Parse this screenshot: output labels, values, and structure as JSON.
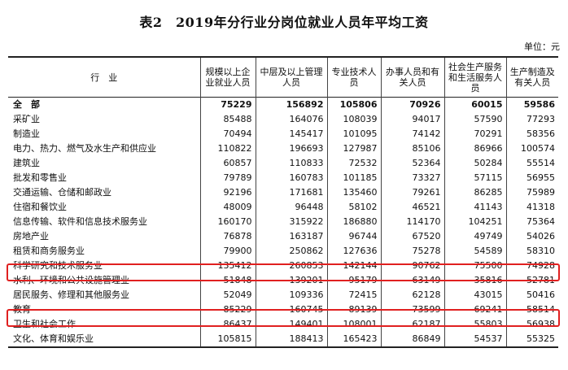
{
  "title": "表2　2019年分行业分岗位就业人员年平均工资",
  "unit": "单位：元",
  "table": {
    "headers": [
      "行　业",
      "规模以上企业就业人员",
      "中层及以上管理人员",
      "专业技术人员",
      "办事人员和有关人员",
      "社会生产服务和生活服务人员",
      "生产制造及有关人员"
    ],
    "rows": [
      [
        "全　部",
        "75229",
        "156892",
        "105806",
        "70926",
        "60015",
        "59586"
      ],
      [
        "采矿业",
        "85488",
        "164076",
        "108039",
        "94017",
        "57590",
        "77293"
      ],
      [
        "制造业",
        "70494",
        "145417",
        "101095",
        "74142",
        "70291",
        "58356"
      ],
      [
        "电力、热力、燃气及水生产和供应业",
        "110822",
        "196693",
        "127987",
        "85106",
        "86966",
        "100574"
      ],
      [
        "建筑业",
        "60857",
        "110833",
        "72532",
        "52364",
        "50284",
        "55514"
      ],
      [
        "批发和零售业",
        "79789",
        "160783",
        "101185",
        "73327",
        "57115",
        "56955"
      ],
      [
        "交通运输、仓储和邮政业",
        "92196",
        "171681",
        "135460",
        "79261",
        "86285",
        "75989"
      ],
      [
        "住宿和餐饮业",
        "48009",
        "96448",
        "58102",
        "46521",
        "41143",
        "41318"
      ],
      [
        "信息传输、软件和信息技术服务业",
        "160170",
        "315922",
        "186880",
        "114170",
        "104251",
        "75364"
      ],
      [
        "房地产业",
        "76878",
        "163187",
        "96744",
        "67520",
        "49749",
        "54026"
      ],
      [
        "租赁和商务服务业",
        "79900",
        "250862",
        "127636",
        "75278",
        "54589",
        "58310"
      ],
      [
        "科学研究和技术服务业",
        "135412",
        "260853",
        "142144",
        "90762",
        "75500",
        "74928"
      ],
      [
        "水利、环境和公共设施管理业",
        "51848",
        "139201",
        "95179",
        "63149",
        "35816",
        "52781"
      ],
      [
        "居民服务、修理和其他服务业",
        "52049",
        "109336",
        "72415",
        "62128",
        "43015",
        "50416"
      ],
      [
        "教育",
        "85229",
        "160745",
        "89139",
        "73599",
        "69241",
        "58514"
      ],
      [
        "卫生和社会工作",
        "86437",
        "149401",
        "108001",
        "62187",
        "55803",
        "56938"
      ],
      [
        "文化、体育和娱乐业",
        "105815",
        "188413",
        "165423",
        "86849",
        "54537",
        "55325"
      ]
    ]
  },
  "colors": {
    "highlight": "#e02020"
  }
}
